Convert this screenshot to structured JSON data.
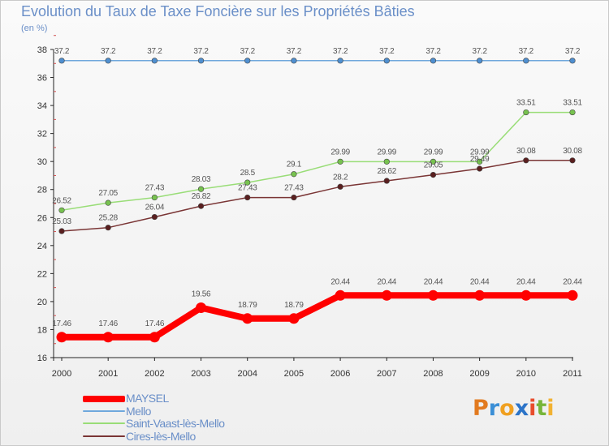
{
  "header": {
    "title": "Evolution du Taux de Taxe Foncière sur les Propriétés Bâties",
    "subtitle": "(en %)"
  },
  "brand": {
    "letters": [
      "P",
      "r",
      "o",
      "x",
      "i",
      "t",
      "i"
    ],
    "colors": [
      "#e27a1f",
      "#3b8fd6",
      "#f0a020",
      "#2c74c8",
      "#e84d2c",
      "#77b539",
      "#f2b232"
    ]
  },
  "chart_data": {
    "type": "line",
    "title": "Evolution du Taux de Taxe Foncière sur les Propriétés Bâties",
    "ylabel": "(en %)",
    "xlabel": "",
    "x": [
      "2000",
      "2001",
      "2002",
      "2003",
      "2004",
      "2005",
      "2006",
      "2007",
      "2008",
      "2009",
      "2010",
      "2011"
    ],
    "ylim": [
      16,
      38
    ],
    "yticks": [
      16,
      18,
      20,
      22,
      24,
      26,
      28,
      30,
      32,
      34,
      36,
      38
    ],
    "grid": false,
    "legend_position": "bottom-left",
    "series": [
      {
        "name": "MAYSEL",
        "color": "#ff0000",
        "values": [
          17.46,
          17.46,
          17.46,
          19.56,
          18.79,
          18.79,
          20.44,
          20.44,
          20.44,
          20.44,
          20.44,
          20.44
        ],
        "labels": [
          "17.46",
          "17.46",
          "17.46",
          "19.56",
          "18.79",
          "18.79",
          "20.44",
          "20.44",
          "20.44",
          "20.44",
          "20.44",
          "20.44"
        ]
      },
      {
        "name": "Mello",
        "color": "#6fa8dc",
        "values": [
          37.2,
          37.2,
          37.2,
          37.2,
          37.2,
          37.2,
          37.2,
          37.2,
          37.2,
          37.2,
          37.2,
          37.2
        ],
        "labels": [
          "37.2",
          "37.2",
          "37.2",
          "37.2",
          "37.2",
          "37.2",
          "37.2",
          "37.2",
          "37.2",
          "37.2",
          "37.2",
          "37.2"
        ]
      },
      {
        "name": "Saint-Vaast-lès-Mello",
        "color": "#99dd77",
        "values": [
          26.52,
          27.05,
          27.43,
          28.03,
          28.5,
          29.1,
          29.99,
          29.99,
          29.99,
          29.99,
          33.51,
          33.51
        ],
        "labels": [
          "26.52",
          "27.05",
          "27.43",
          "28.03",
          "28.5",
          "29.1",
          "29.99",
          "29.99",
          "29.99",
          "29.99",
          "33.51",
          "33.51"
        ]
      },
      {
        "name": "Cires-lès-Mello",
        "color": "#7a3535",
        "values": [
          25.03,
          25.28,
          26.04,
          26.82,
          27.43,
          27.43,
          28.2,
          28.62,
          29.05,
          29.49,
          30.08,
          30.08
        ],
        "labels": [
          "25.03",
          "25.28",
          "26.04",
          "26.82",
          "27.43",
          "27.43",
          "28.2",
          "28.62",
          "29.05",
          "29.49",
          "30.08",
          "30.08"
        ]
      }
    ]
  }
}
